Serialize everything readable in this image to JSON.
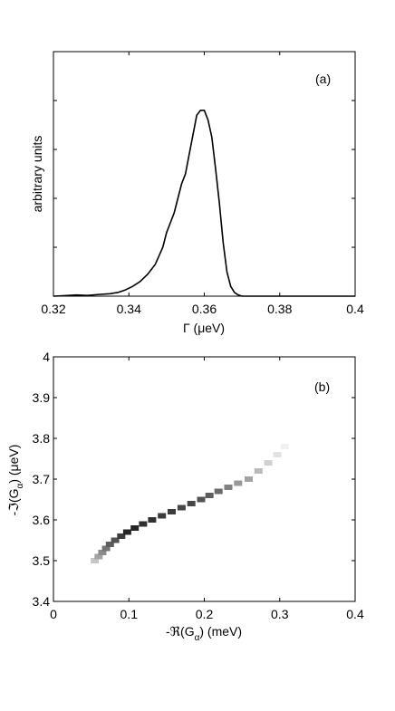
{
  "chart_data": [
    {
      "type": "line",
      "panel_label": "(a)",
      "title": "",
      "xlabel": "Γ (μeV)",
      "ylabel": "arbitrary units",
      "xlim": [
        0.32,
        0.4
      ],
      "ylim": [
        0,
        1.0
      ],
      "xticks": [
        "0.32",
        "0.34",
        "0.36",
        "0.38",
        "0.4"
      ],
      "yticks_unlabeled": [
        0,
        0.2,
        0.4,
        0.6,
        0.8,
        1.0
      ],
      "grid": false,
      "series": [
        {
          "x": [
            0.32,
            0.323,
            0.326,
            0.329,
            0.332,
            0.335,
            0.337,
            0.339,
            0.341,
            0.343,
            0.345,
            0.347,
            0.349,
            0.35,
            0.351,
            0.352,
            0.353,
            0.354,
            0.355,
            0.356,
            0.357,
            0.358,
            0.359,
            0.36,
            0.361,
            0.362,
            0.363,
            0.364,
            0.365,
            0.366,
            0.367,
            0.368,
            0.369,
            0.37,
            0.372,
            0.375,
            0.38,
            0.39,
            0.4
          ],
          "y": [
            0.0,
            0.002,
            0.005,
            0.003,
            0.007,
            0.01,
            0.015,
            0.025,
            0.04,
            0.06,
            0.09,
            0.13,
            0.2,
            0.26,
            0.3,
            0.34,
            0.4,
            0.46,
            0.5,
            0.58,
            0.66,
            0.74,
            0.76,
            0.76,
            0.72,
            0.65,
            0.52,
            0.38,
            0.22,
            0.1,
            0.04,
            0.015,
            0.005,
            0.0,
            0.0,
            0.0,
            0.0,
            0.0,
            0.0
          ]
        }
      ]
    },
    {
      "type": "heatmap",
      "panel_label": "(b)",
      "title": "",
      "xlabel": "-ℜ(G",
      "xlabel_sub": "α",
      "xlabel_tail": ") (meV)",
      "ylabel": "-ℑ(G",
      "ylabel_sub": "α",
      "ylabel_tail": ") (μeV)",
      "xlim": [
        0,
        0.4
      ],
      "ylim": [
        3.4,
        4.0
      ],
      "xticks": [
        "0",
        "0.1",
        "0.2",
        "0.3",
        "0.4"
      ],
      "yticks": [
        "3.4",
        "3.5",
        "3.6",
        "3.7",
        "3.8",
        "3.9",
        "4"
      ],
      "grid": false,
      "colormap": "grayscale (dark = high density)",
      "cells": [
        {
          "x": 0.053,
          "y": 3.5,
          "v": 0.25
        },
        {
          "x": 0.058,
          "y": 3.51,
          "v": 0.4
        },
        {
          "x": 0.063,
          "y": 3.52,
          "v": 0.5
        },
        {
          "x": 0.068,
          "y": 3.53,
          "v": 0.6
        },
        {
          "x": 0.073,
          "y": 3.54,
          "v": 0.7
        },
        {
          "x": 0.08,
          "y": 3.55,
          "v": 0.75
        },
        {
          "x": 0.088,
          "y": 3.56,
          "v": 0.85
        },
        {
          "x": 0.096,
          "y": 3.57,
          "v": 0.95
        },
        {
          "x": 0.106,
          "y": 3.58,
          "v": 0.95
        },
        {
          "x": 0.117,
          "y": 3.59,
          "v": 0.9
        },
        {
          "x": 0.129,
          "y": 3.6,
          "v": 0.9
        },
        {
          "x": 0.142,
          "y": 3.61,
          "v": 0.85
        },
        {
          "x": 0.155,
          "y": 3.62,
          "v": 0.85
        },
        {
          "x": 0.168,
          "y": 3.63,
          "v": 0.8
        },
        {
          "x": 0.181,
          "y": 3.64,
          "v": 0.8
        },
        {
          "x": 0.194,
          "y": 3.65,
          "v": 0.75
        },
        {
          "x": 0.205,
          "y": 3.66,
          "v": 0.7
        },
        {
          "x": 0.217,
          "y": 3.67,
          "v": 0.65
        },
        {
          "x": 0.23,
          "y": 3.68,
          "v": 0.55
        },
        {
          "x": 0.243,
          "y": 3.69,
          "v": 0.45
        },
        {
          "x": 0.257,
          "y": 3.7,
          "v": 0.4
        },
        {
          "x": 0.27,
          "y": 3.72,
          "v": 0.3
        },
        {
          "x": 0.283,
          "y": 3.74,
          "v": 0.2
        },
        {
          "x": 0.295,
          "y": 3.76,
          "v": 0.12
        },
        {
          "x": 0.305,
          "y": 3.78,
          "v": 0.06
        }
      ]
    }
  ]
}
